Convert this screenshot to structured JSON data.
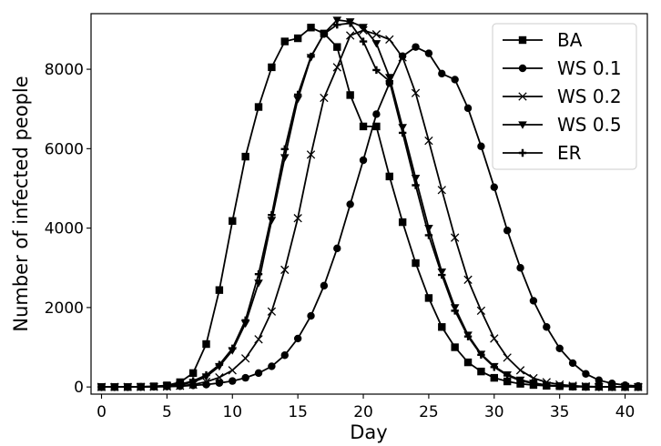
{
  "chart_data": {
    "type": "line",
    "xlabel": "Day",
    "ylabel": "Number of infected people",
    "xlim": [
      -0.8,
      41.7
    ],
    "ylim": [
      -180,
      9400
    ],
    "xticks": [
      0,
      5,
      10,
      15,
      20,
      25,
      30,
      35,
      40
    ],
    "yticks": [
      0,
      2000,
      4000,
      6000,
      8000
    ],
    "grid": false,
    "legend_position": "top-right",
    "line_color": "#000000",
    "x": [
      0,
      1,
      2,
      3,
      4,
      5,
      6,
      7,
      8,
      9,
      10,
      11,
      12,
      13,
      14,
      15,
      16,
      17,
      18,
      19,
      20,
      21,
      22,
      23,
      24,
      25,
      26,
      27,
      28,
      29,
      30,
      31,
      32,
      33,
      34,
      35,
      36,
      37,
      38,
      39,
      40,
      41
    ],
    "series": [
      {
        "name": "BA",
        "marker": "square",
        "values": [
          0,
          0,
          0,
          5,
          15,
          40,
          120,
          350,
          1080,
          2440,
          4180,
          5800,
          7050,
          8050,
          8700,
          8780,
          9050,
          8900,
          8560,
          7350,
          6560,
          6560,
          5300,
          4150,
          3120,
          2240,
          1510,
          1000,
          620,
          390,
          230,
          140,
          80,
          50,
          30,
          20,
          10,
          5,
          5,
          0,
          0,
          0
        ]
      },
      {
        "name": "WS 0.1",
        "marker": "circle",
        "values": [
          0,
          0,
          0,
          0,
          5,
          10,
          20,
          40,
          60,
          100,
          150,
          230,
          350,
          520,
          800,
          1220,
          1790,
          2550,
          3490,
          4600,
          5710,
          6870,
          7650,
          8330,
          8560,
          8400,
          7890,
          7740,
          7020,
          6060,
          5030,
          3940,
          3000,
          2170,
          1510,
          970,
          600,
          330,
          170,
          90,
          45,
          25
        ]
      },
      {
        "name": "WS 0.2",
        "marker": "x",
        "values": [
          0,
          0,
          0,
          0,
          5,
          10,
          30,
          60,
          130,
          240,
          420,
          720,
          1200,
          1900,
          2950,
          4250,
          5850,
          7280,
          8050,
          8850,
          8980,
          8880,
          8750,
          8300,
          7400,
          6200,
          4960,
          3760,
          2700,
          1920,
          1220,
          740,
          420,
          220,
          120,
          60,
          30,
          15,
          5,
          0,
          0,
          0
        ]
      },
      {
        "name": "WS 0.5",
        "marker": "triangle-down",
        "values": [
          0,
          0,
          0,
          5,
          10,
          30,
          60,
          120,
          260,
          520,
          920,
          1600,
          2620,
          4200,
          5780,
          7250,
          8300,
          8900,
          9240,
          9200,
          9060,
          8650,
          7800,
          6540,
          5260,
          4000,
          2900,
          2000,
          1310,
          830,
          520,
          310,
          180,
          100,
          50,
          25,
          10,
          5,
          0,
          0,
          0,
          0
        ]
      },
      {
        "name": "ER",
        "marker": "plus",
        "values": [
          0,
          0,
          0,
          5,
          10,
          30,
          70,
          150,
          300,
          560,
          970,
          1680,
          2840,
          4330,
          5990,
          7360,
          8320,
          8890,
          9120,
          9160,
          8700,
          7980,
          7700,
          6400,
          5080,
          3820,
          2820,
          1920,
          1270,
          810,
          500,
          290,
          160,
          90,
          45,
          20,
          10,
          5,
          0,
          0,
          0,
          0
        ]
      }
    ]
  }
}
